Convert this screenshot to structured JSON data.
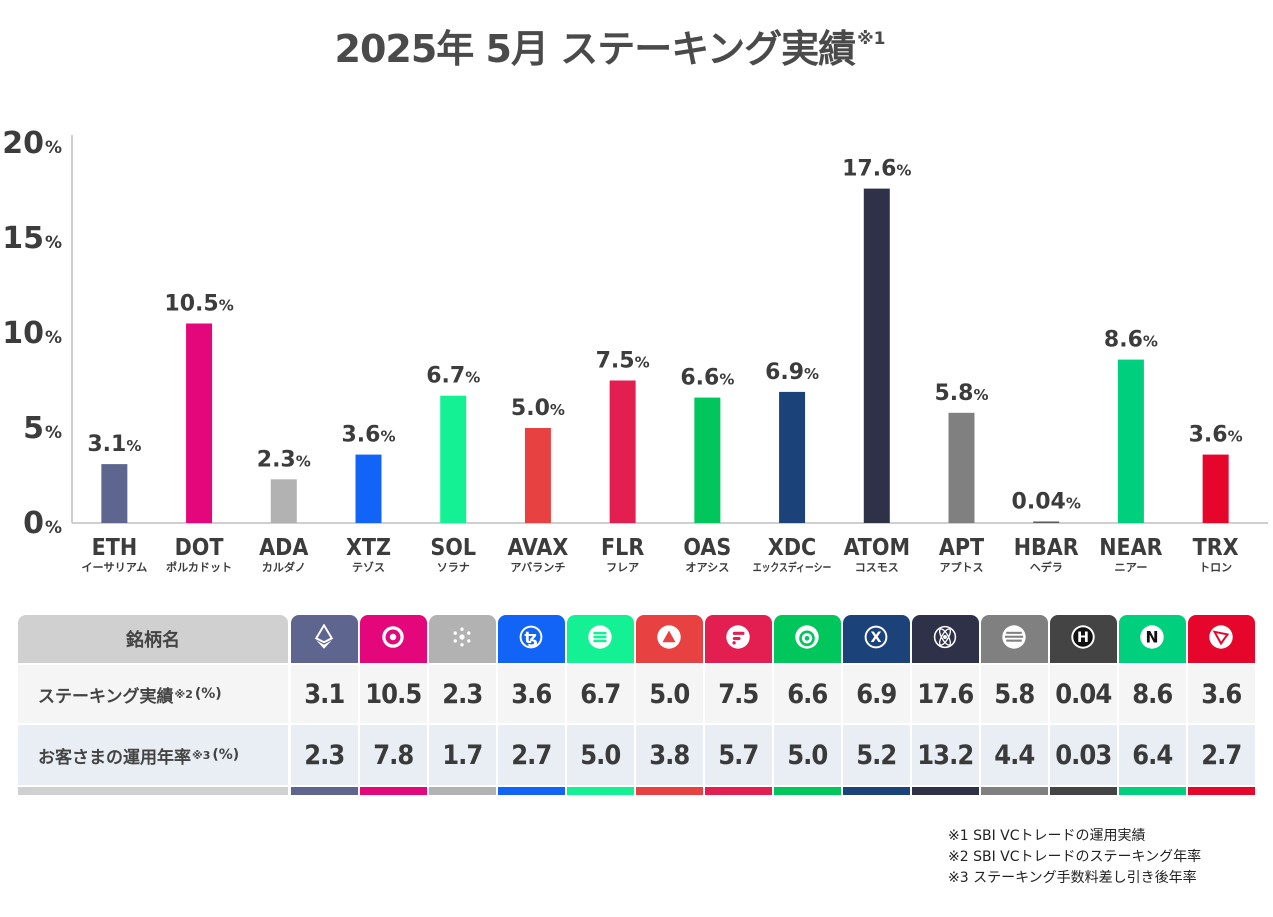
{
  "title": {
    "main": "2025年 5月  ステーキング実績",
    "sup": "※1"
  },
  "chart_data": {
    "type": "bar",
    "categories": [
      "ETH",
      "DOT",
      "ADA",
      "XTZ",
      "SOL",
      "AVAX",
      "FLR",
      "OAS",
      "XDC",
      "ATOM",
      "APT",
      "HBAR",
      "NEAR",
      "TRX"
    ],
    "subcategories": [
      "イーサリアム",
      "ポルカドット",
      "カルダノ",
      "テゾス",
      "ソラナ",
      "アバランチ",
      "フレア",
      "オアシス",
      "エックスディーシー",
      "コスモス",
      "アプトス",
      "ヘデラ",
      "ニアー",
      "トロン"
    ],
    "values": [
      3.1,
      10.5,
      2.3,
      3.6,
      6.7,
      5.0,
      7.5,
      6.6,
      6.9,
      17.6,
      5.8,
      0.04,
      8.6,
      3.6
    ],
    "value_labels": [
      "3.1",
      "10.5",
      "2.3",
      "3.6",
      "6.7",
      "5.0",
      "7.5",
      "6.6",
      "6.9",
      "17.6",
      "5.8",
      "0.04",
      "8.6",
      "3.6"
    ],
    "value_unit": "%",
    "colors": [
      "#5e6690",
      "#e4067b",
      "#b2b2b2",
      "#1164f5",
      "#14f195",
      "#e84142",
      "#e31f52",
      "#00c65c",
      "#1c427a",
      "#2e3148",
      "#808080",
      "#5a5a5a",
      "#00d07d",
      "#e6062b"
    ],
    "yticks": [
      "0",
      "5",
      "10",
      "15",
      "20"
    ],
    "ytick_unit": "%",
    "ylim": [
      0,
      20
    ],
    "grid": false
  },
  "table": {
    "header_label": "銘柄名",
    "icon_names": [
      "ethereum-icon",
      "polkadot-icon",
      "cardano-icon",
      "tezos-icon",
      "solana-icon",
      "avalanche-icon",
      "flare-icon",
      "oasys-icon",
      "xdc-icon",
      "cosmos-icon",
      "aptos-icon",
      "hedera-icon",
      "near-icon",
      "tron-icon"
    ],
    "icon_bg": [
      "#5e6690",
      "#e4067b",
      "#b2b2b2",
      "#1164f5",
      "#14f195",
      "#e84142",
      "#e31f52",
      "#00c65c",
      "#1c427a",
      "#2e3148",
      "#808080",
      "#444444",
      "#00d07d",
      "#e6062b"
    ],
    "row1": {
      "label": "ステーキング実績",
      "sup": "※2",
      "unit": "(%)",
      "values": [
        "3.1",
        "10.5",
        "2.3",
        "3.6",
        "6.7",
        "5.0",
        "7.5",
        "6.6",
        "6.9",
        "17.6",
        "5.8",
        "0.04",
        "8.6",
        "3.6"
      ]
    },
    "row2": {
      "label": "お客さまの運用年率",
      "sup": "※3",
      "unit": "(%)",
      "values": [
        "2.3",
        "7.8",
        "1.7",
        "2.7",
        "5.0",
        "3.8",
        "5.7",
        "5.0",
        "5.2",
        "13.2",
        "4.4",
        "0.03",
        "6.4",
        "2.7"
      ]
    }
  },
  "footnotes": [
    "※1  SBI VCトレードの運用実績",
    "※2  SBI VCトレードのステーキング年率",
    "※3  ステーキング手数料差し引き後年率"
  ]
}
